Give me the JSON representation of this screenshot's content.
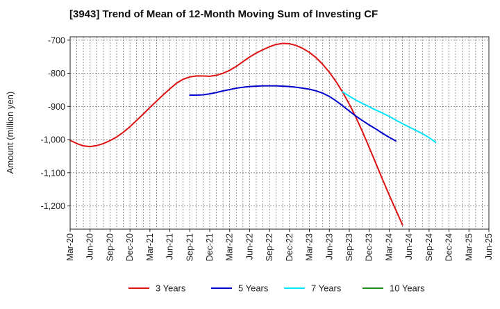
{
  "chart_data": {
    "type": "line",
    "title": "[3943]  Trend of Mean of 12-Month Moving Sum of Investing CF",
    "xlabel": "",
    "ylabel": "Amount (million yen)",
    "ylim": [
      -1270,
      -690
    ],
    "y_ticks": [
      -700,
      -800,
      -900,
      -1000,
      -1100,
      -1200
    ],
    "y_tick_labels": [
      "-700",
      "-800",
      "-900",
      "-1,000",
      "-1,100",
      "-1,200"
    ],
    "x_tick_labels": [
      "Mar-20",
      "Jun-20",
      "Sep-20",
      "Dec-20",
      "Mar-21",
      "Jun-21",
      "Sep-21",
      "Dec-21",
      "Mar-22",
      "Jun-22",
      "Sep-22",
      "Dec-22",
      "Mar-23",
      "Jun-23",
      "Sep-23",
      "Dec-23",
      "Mar-24",
      "Jun-24",
      "Sep-24",
      "Dec-24",
      "Mar-25",
      "Jun-25"
    ],
    "grid": true,
    "legend_position": "bottom",
    "series": [
      {
        "name": "3 Years",
        "color": "#dd1111",
        "start_index": 0,
        "values": [
          -1002,
          -1012,
          -1019,
          -1021,
          -1018,
          -1012,
          -1003,
          -992,
          -978,
          -961,
          -942,
          -923,
          -903,
          -884,
          -865,
          -847,
          -830,
          -818,
          -811,
          -808,
          -808,
          -809,
          -806,
          -800,
          -791,
          -779,
          -765,
          -751,
          -739,
          -729,
          -720,
          -713,
          -710,
          -711,
          -716,
          -725,
          -737,
          -753,
          -773,
          -797,
          -825,
          -857,
          -893,
          -933,
          -977,
          -1024,
          -1072,
          -1120,
          -1167,
          -1212,
          -1257
        ]
      },
      {
        "name": "5 Years",
        "color": "#0000cc",
        "start_index": 18,
        "values": [
          -866,
          -866,
          -865,
          -862,
          -858,
          -853,
          -849,
          -845,
          -842,
          -840,
          -839,
          -838,
          -838,
          -838,
          -839,
          -840,
          -842,
          -845,
          -848,
          -853,
          -860,
          -870,
          -883,
          -898,
          -914,
          -929,
          -943,
          -956,
          -968,
          -981,
          -993,
          -1004
        ]
      },
      {
        "name": "7 Years",
        "color": "#00e5ff",
        "start_index": 41,
        "values": [
          -856,
          -869,
          -881,
          -891,
          -901,
          -911,
          -920,
          -930,
          -941,
          -952,
          -962,
          -972,
          -982,
          -994,
          -1008
        ]
      },
      {
        "name": "10 Years",
        "color": "#228b22",
        "start_index": 0,
        "values": []
      }
    ]
  }
}
